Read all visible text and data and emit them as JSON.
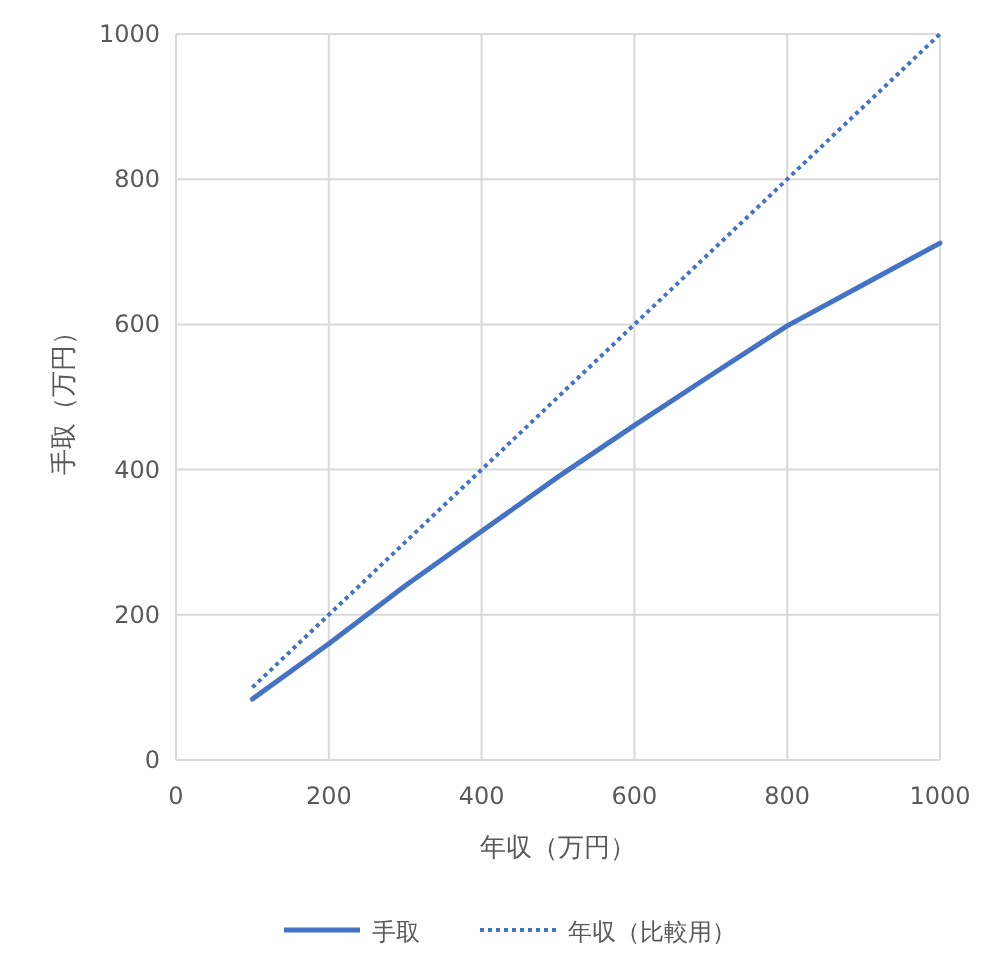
{
  "chart_data": {
    "type": "line",
    "xlabel": "年収（万円）",
    "ylabel": "手取（万円）",
    "xlim": [
      0,
      1000
    ],
    "ylim": [
      0,
      1000
    ],
    "xticks": [
      0,
      200,
      400,
      600,
      800,
      1000
    ],
    "yticks": [
      0,
      200,
      400,
      600,
      800,
      1000
    ],
    "grid": true,
    "legend": "bottom",
    "marker": "none",
    "series": [
      {
        "name": "手取",
        "color": "#4472c4",
        "line_style": "solid",
        "x": [
          100,
          200,
          300,
          400,
          500,
          600,
          700,
          800,
          900,
          1000
        ],
        "values": [
          84,
          160,
          240,
          315,
          390,
          461,
          530,
          598,
          655,
          712
        ]
      },
      {
        "name": "年収（比較用）",
        "color": "#4472c4",
        "line_style": "dotted",
        "x": [
          100,
          1000
        ],
        "values": [
          100,
          1000
        ]
      }
    ]
  }
}
